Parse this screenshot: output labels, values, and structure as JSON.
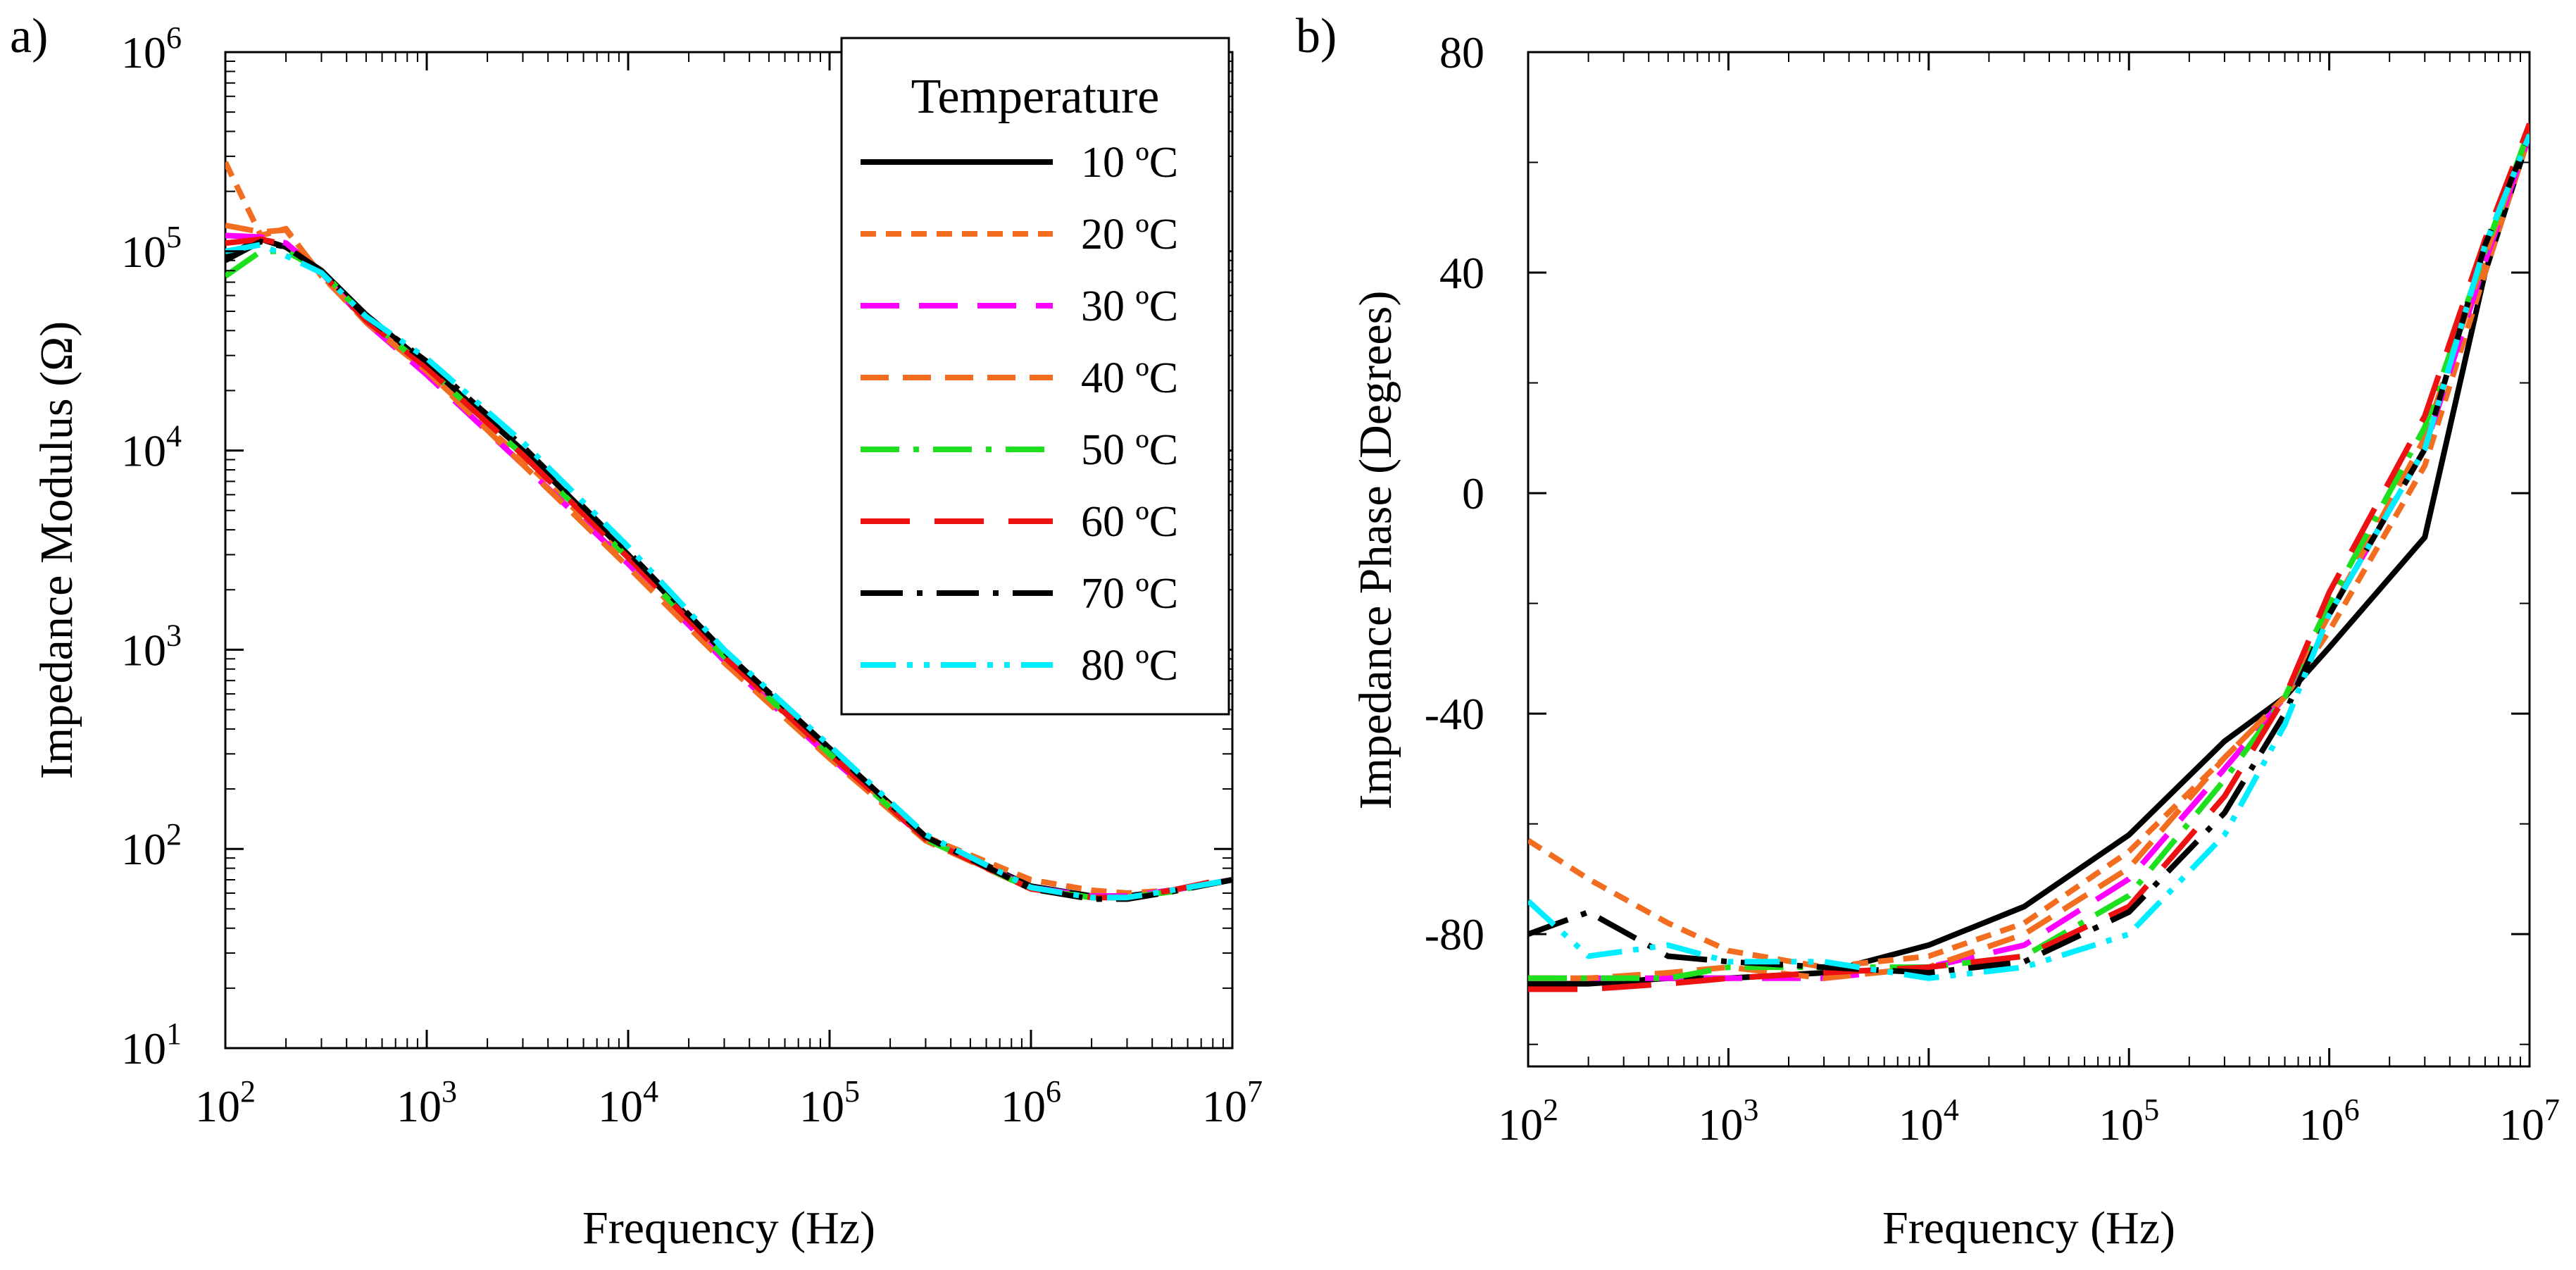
{
  "figure_labels": {
    "panel_a": "a)",
    "panel_b": "b)"
  },
  "legend": {
    "title": "Temperature",
    "entries": [
      {
        "label": "10 ºC",
        "color": "#000000",
        "style": "solid"
      },
      {
        "label": "20 ºC",
        "color": "#f26d1f",
        "style": "short-dash"
      },
      {
        "label": "30 ºC",
        "color": "#ff00ff",
        "style": "long-dash"
      },
      {
        "label": "40 ºC",
        "color": "#f26d1f",
        "style": "dash"
      },
      {
        "label": "50 ºC",
        "color": "#1ee01e",
        "style": "dash-dot"
      },
      {
        "label": "60 ºC",
        "color": "#ee1111",
        "style": "long-dash-gap"
      },
      {
        "label": "70 ºC",
        "color": "#000000",
        "style": "dash-dot-long"
      },
      {
        "label": "80 ºC",
        "color": "#00eeff",
        "style": "dash-dot-dot"
      }
    ]
  },
  "chart_data": [
    {
      "type": "line",
      "panel": "a)",
      "title": "",
      "xlabel": "Frequency (Hz)",
      "ylabel": "Impedance Modulus (Ω)",
      "xscale": "log",
      "yscale": "log",
      "xlim": [
        100,
        10000000
      ],
      "ylim": [
        10,
        1000000
      ],
      "x_ticks": [
        {
          "base": "10",
          "exp": "2"
        },
        {
          "base": "10",
          "exp": "3"
        },
        {
          "base": "10",
          "exp": "4"
        },
        {
          "base": "10",
          "exp": "5"
        },
        {
          "base": "10",
          "exp": "6"
        },
        {
          "base": "10",
          "exp": "7"
        }
      ],
      "y_ticks": [
        {
          "base": "10",
          "exp": "1"
        },
        {
          "base": "10",
          "exp": "2"
        },
        {
          "base": "10",
          "exp": "3"
        },
        {
          "base": "10",
          "exp": "4"
        },
        {
          "base": "10",
          "exp": "5"
        },
        {
          "base": "10",
          "exp": "6"
        }
      ],
      "x": [
        100,
        150,
        200,
        300,
        500,
        1000,
        3000,
        10000,
        30000,
        100000,
        300000,
        1000000,
        2000000,
        3000000,
        5000000,
        10000000
      ],
      "series": [
        {
          "name": "10 ºC",
          "values": [
            95000,
            115000,
            105000,
            80000,
            48000,
            27000,
            10000,
            3000,
            950,
            320,
            115,
            65,
            58,
            58,
            62,
            70
          ]
        },
        {
          "name": "20 ºC",
          "values": [
            280000,
            120000,
            130000,
            75000,
            45000,
            25000,
            9000,
            2800,
            900,
            300,
            115,
            70,
            62,
            60,
            62,
            70
          ]
        },
        {
          "name": "30 ºC",
          "values": [
            120000,
            118000,
            110000,
            78000,
            44000,
            24000,
            8500,
            2700,
            880,
            290,
            112,
            64,
            58,
            58,
            62,
            70
          ]
        },
        {
          "name": "40 ºC",
          "values": [
            135000,
            125000,
            128000,
            76000,
            44000,
            25000,
            8500,
            2600,
            860,
            285,
            110,
            63,
            57,
            57,
            61,
            70
          ]
        },
        {
          "name": "50 ºC",
          "values": [
            75000,
            100000,
            100000,
            80000,
            46000,
            26000,
            9500,
            2900,
            920,
            300,
            112,
            63,
            57,
            57,
            61,
            70
          ]
        },
        {
          "name": "60 ºC",
          "values": [
            110000,
            115000,
            108000,
            78000,
            45000,
            26000,
            9500,
            2900,
            920,
            300,
            112,
            63,
            57,
            57,
            62,
            72
          ]
        },
        {
          "name": "70 ºC",
          "values": [
            90000,
            112000,
            105000,
            80000,
            47000,
            28000,
            10500,
            3100,
            980,
            320,
            115,
            63,
            56,
            56,
            61,
            70
          ]
        },
        {
          "name": "80 ºC",
          "values": [
            100000,
            108000,
            95000,
            78000,
            47000,
            29000,
            11000,
            3300,
            1000,
            330,
            118,
            64,
            57,
            57,
            62,
            70
          ]
        }
      ]
    },
    {
      "type": "line",
      "panel": "b)",
      "title": "",
      "xlabel": "Frequency (Hz)",
      "ylabel": "Impedance Phase (Degrees)",
      "xscale": "log",
      "yscale": "linear",
      "xlim": [
        100,
        10000000
      ],
      "ylim": [
        -104,
        80
      ],
      "x_ticks": [
        {
          "base": "10",
          "exp": "2"
        },
        {
          "base": "10",
          "exp": "3"
        },
        {
          "base": "10",
          "exp": "4"
        },
        {
          "base": "10",
          "exp": "5"
        },
        {
          "base": "10",
          "exp": "6"
        },
        {
          "base": "10",
          "exp": "7"
        }
      ],
      "y_ticks": [
        "80",
        "40",
        "0",
        "-40",
        "-80"
      ],
      "x": [
        100,
        200,
        500,
        1000,
        3000,
        10000,
        30000,
        100000,
        300000,
        600000,
        1000000,
        3000000,
        6000000,
        10000000
      ],
      "series": [
        {
          "name": "10 ºC",
          "values": [
            -89,
            -89,
            -88,
            -88,
            -87,
            -82,
            -75,
            -62,
            -45,
            -37,
            -28,
            -8,
            40,
            65
          ]
        },
        {
          "name": "20 ºC",
          "values": [
            -63,
            -70,
            -78,
            -83,
            -86,
            -84,
            -78,
            -65,
            -48,
            -37,
            -25,
            5,
            40,
            65
          ]
        },
        {
          "name": "30 ºC",
          "values": [
            -88,
            -88,
            -88,
            -88,
            -88,
            -86,
            -82,
            -70,
            -50,
            -37,
            -22,
            8,
            42,
            65
          ]
        },
        {
          "name": "40 ºC",
          "values": [
            -88,
            -88,
            -87,
            -86,
            -88,
            -86,
            -80,
            -68,
            -48,
            -37,
            -22,
            10,
            43,
            66
          ]
        },
        {
          "name": "50 ºC",
          "values": [
            -88,
            -88,
            -88,
            -86,
            -86,
            -86,
            -84,
            -73,
            -52,
            -37,
            -20,
            12,
            44,
            66
          ]
        },
        {
          "name": "60 ºC",
          "values": [
            -90,
            -90,
            -89,
            -88,
            -87,
            -86,
            -84,
            -75,
            -55,
            -37,
            -18,
            14,
            46,
            67
          ]
        },
        {
          "name": "70 ºC",
          "values": [
            -80,
            -76,
            -84,
            -85,
            -86,
            -87,
            -85,
            -76,
            -58,
            -40,
            -22,
            8,
            45,
            65
          ]
        },
        {
          "name": "80 ºC",
          "values": [
            -74,
            -84,
            -82,
            -85,
            -85,
            -88,
            -86,
            -80,
            -62,
            -42,
            -22,
            8,
            45,
            65
          ]
        }
      ]
    }
  ]
}
